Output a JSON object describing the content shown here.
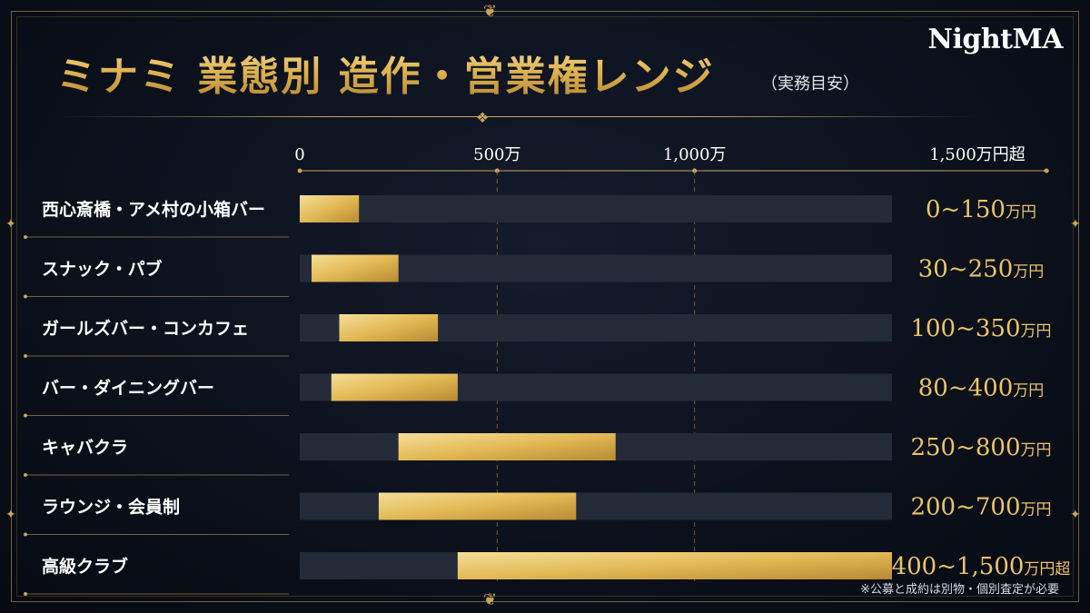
{
  "header": {
    "title": "ミナミ 業態別 造作・営業権レンジ",
    "subtitle": "（実務目安）",
    "logo": "NightMA"
  },
  "note": "※公募と成約は別物・個別査定が必要",
  "colors": {
    "gold": "#e2b955",
    "track": "#242b38",
    "gridline": "#8a6c34",
    "text": "#ffffff",
    "accent_line": "#c9a45c"
  },
  "chart_data": {
    "type": "bar",
    "orientation": "horizontal",
    "style": "floating range",
    "unit": "万円",
    "xlim": [
      0,
      1500
    ],
    "ticks": [
      {
        "value": 0,
        "label": "0"
      },
      {
        "value": 500,
        "label": "500万"
      },
      {
        "value": 1000,
        "label": "1,000万"
      },
      {
        "value": 1500,
        "label": "1,500万円超"
      }
    ],
    "grid": true,
    "categories": [
      "西心斎橋・アメ村の小箱バー",
      "スナック・パブ",
      "ガールズバー・コンカフェ",
      "バー・ダイニングバー",
      "キャバクラ",
      "ラウンジ・会員制",
      "高級クラブ"
    ],
    "ranges": [
      {
        "low": 0,
        "high": 150
      },
      {
        "low": 30,
        "high": 250
      },
      {
        "low": 100,
        "high": 350
      },
      {
        "low": 80,
        "high": 400
      },
      {
        "low": 250,
        "high": 800
      },
      {
        "low": 200,
        "high": 700
      },
      {
        "low": 400,
        "high": 1500
      }
    ],
    "range_labels": [
      {
        "text": "0~150",
        "unit": "万円"
      },
      {
        "text": "30~250",
        "unit": "万円"
      },
      {
        "text": "100~350",
        "unit": "万円"
      },
      {
        "text": "80~400",
        "unit": "万円"
      },
      {
        "text": "250~800",
        "unit": "万円"
      },
      {
        "text": "200~700",
        "unit": "万円"
      },
      {
        "text": "400~1,500",
        "unit": "万円超"
      }
    ]
  }
}
